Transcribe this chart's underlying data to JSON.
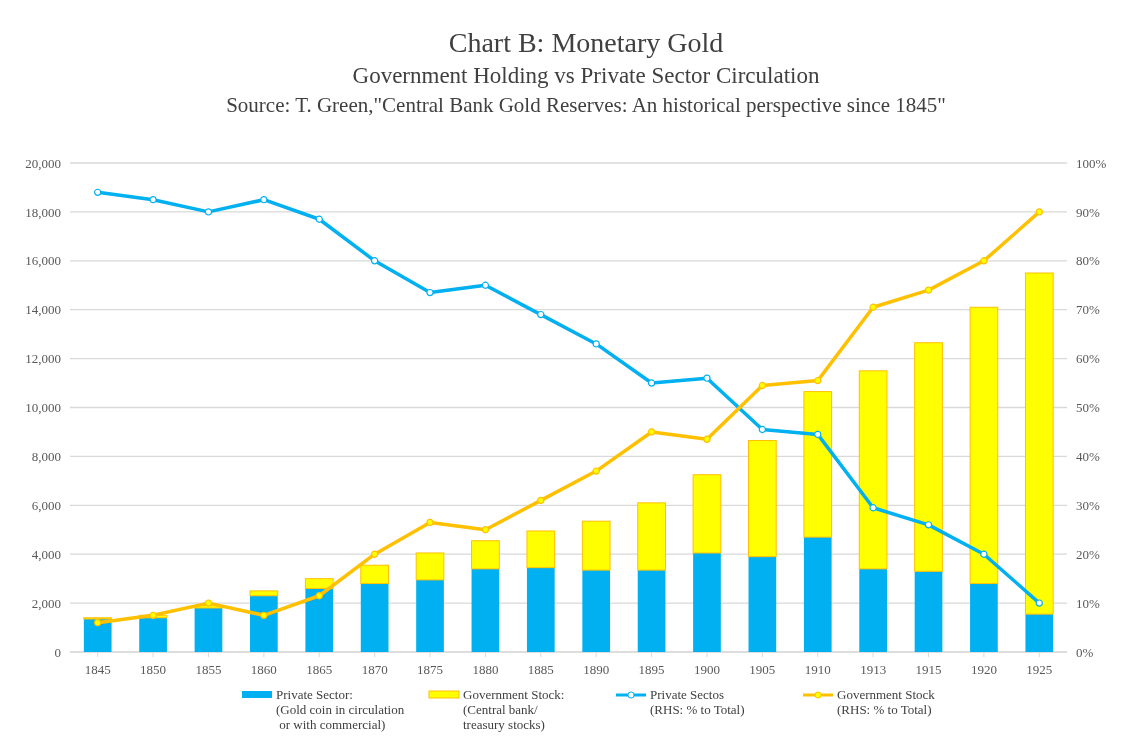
{
  "chart_data": {
    "type": "bar",
    "title": "Chart B: Monetary Gold",
    "subtitle": "Government Holding vs Private Sector Circulation",
    "annotations": [
      "Source: T. Green,\"Central  Bank Gold Reserves: An historical perspective  since 1845\""
    ],
    "categories": [
      "1845",
      "1850",
      "1855",
      "1860",
      "1865",
      "1870",
      "1875",
      "1880",
      "1885",
      "1890",
      "1895",
      "1900",
      "1905",
      "1910",
      "1913",
      "1915",
      "1920",
      "1925"
    ],
    "stacked": true,
    "grid": "y",
    "legend": "bottom",
    "ylim": [
      0,
      20000
    ],
    "yticks": [
      {
        "value": 0,
        "label": "0"
      },
      {
        "value": 2000,
        "label": "2,000"
      },
      {
        "value": 4000,
        "label": "4,000"
      },
      {
        "value": 6000,
        "label": "6,000"
      },
      {
        "value": 8000,
        "label": "8,000"
      },
      {
        "value": 10000,
        "label": "10,000"
      },
      {
        "value": 12000,
        "label": "12,000"
      },
      {
        "value": 14000,
        "label": "14,000"
      },
      {
        "value": 16000,
        "label": "16,000"
      },
      {
        "value": 18000,
        "label": "18,000"
      },
      {
        "value": 20000,
        "label": "20,000"
      }
    ],
    "y2lim": [
      0,
      100
    ],
    "y2ticks": [
      {
        "value": 0,
        "label": "0%"
      },
      {
        "value": 10,
        "label": "10%"
      },
      {
        "value": 20,
        "label": "20%"
      },
      {
        "value": 30,
        "label": "30%"
      },
      {
        "value": 40,
        "label": "40%"
      },
      {
        "value": 50,
        "label": "50%"
      },
      {
        "value": 60,
        "label": "60%"
      },
      {
        "value": 70,
        "label": "70%"
      },
      {
        "value": 80,
        "label": "80%"
      },
      {
        "value": 90,
        "label": "90%"
      },
      {
        "value": 100,
        "label": "100%"
      }
    ],
    "series": [
      {
        "name": "Private Sector:\n(Gold coin in circulation\n or with commercial)",
        "color": "#00b0f0",
        "values": [
          1350,
          1400,
          1800,
          2300,
          2600,
          2800,
          2950,
          3400,
          3450,
          3350,
          3350,
          4050,
          3900,
          4700,
          3400,
          3300,
          2800,
          1550
        ]
      },
      {
        "name": "Government Stock:\n(Central bank/\ntreasury stocks)",
        "color": "#ffff00",
        "values": [
          50,
          100,
          100,
          200,
          400,
          750,
          1100,
          1150,
          1500,
          2000,
          2750,
          3200,
          4750,
          5950,
          8100,
          9350,
          11300,
          13950
        ]
      },
      {
        "name": "Private Sectos\n(RHS: % to Total)",
        "type": "line",
        "axis": "y2",
        "color": "#00b0f0",
        "marker": "circle",
        "values": [
          94,
          92.5,
          90,
          92.5,
          88.5,
          80,
          73.5,
          75,
          69,
          63,
          55,
          56,
          45.5,
          44.5,
          29.5,
          26,
          20,
          10
        ]
      },
      {
        "name": "Government Stock\n(RHS: % to Total)",
        "type": "line",
        "axis": "y2",
        "color": "#ffc000",
        "marker": "circle",
        "values": [
          6,
          7.5,
          10,
          7.5,
          11.5,
          20,
          26.5,
          25,
          31,
          37,
          45,
          43.5,
          54.5,
          55.5,
          70.5,
          74,
          80,
          90
        ]
      }
    ]
  }
}
